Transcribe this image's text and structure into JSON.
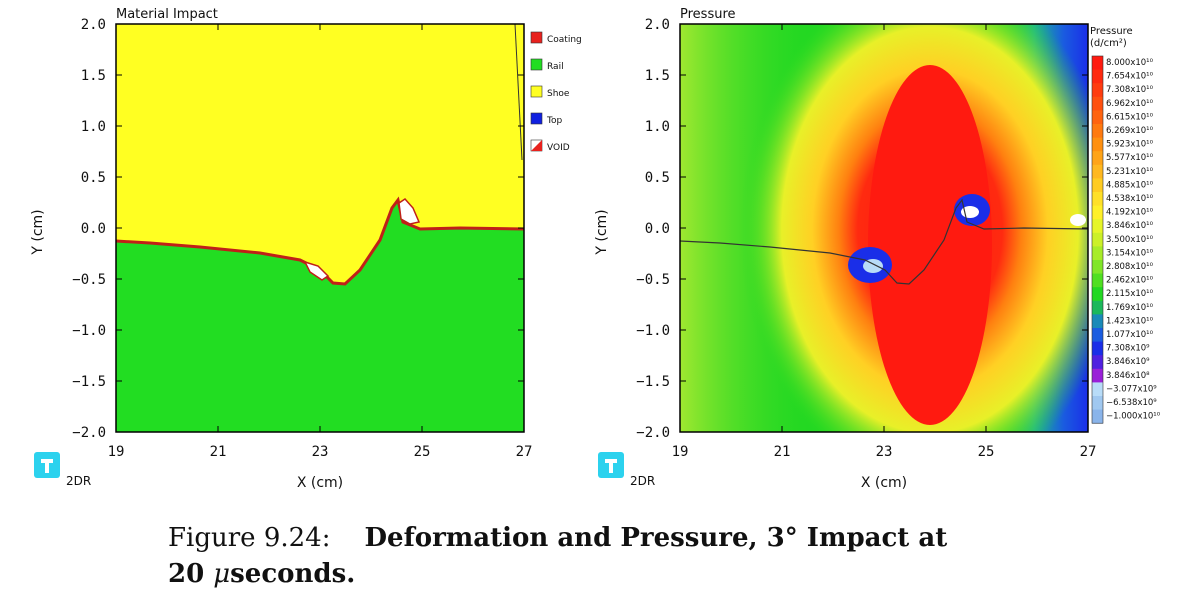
{
  "left_panel": {
    "title": "Material Impact",
    "xlabel": "X (cm)",
    "ylabel": "Y (cm)",
    "logo_text": "2DR",
    "legend": [
      {
        "label": "Coating",
        "color": "#e8221e"
      },
      {
        "label": "Rail",
        "color": "#22dd22"
      },
      {
        "label": "Shoe",
        "color": "#ffff22"
      },
      {
        "label": "Top",
        "color": "#1020e0"
      },
      {
        "label": "VOID",
        "color": "#ffffff"
      }
    ]
  },
  "right_panel": {
    "title": "Pressure",
    "xlabel": "X (cm)",
    "ylabel": "Y (cm)",
    "logo_text": "2DR",
    "colorbar_title": "Pressure",
    "colorbar_units": "(d/cm²)",
    "colorbar_labels": [
      "8.000x10¹⁰",
      "7.654x10¹⁰",
      "7.308x10¹⁰",
      "6.962x10¹⁰",
      "6.615x10¹⁰",
      "6.269x10¹⁰",
      "5.923x10¹⁰",
      "5.577x10¹⁰",
      "5.231x10¹⁰",
      "4.885x10¹⁰",
      "4.538x10¹⁰",
      "4.192x10¹⁰",
      "3.846x10¹⁰",
      "3.500x10¹⁰",
      "3.154x10¹⁰",
      "2.808x10¹⁰",
      "2.462x10¹⁰",
      "2.115x10¹⁰",
      "1.769x10¹⁰",
      "1.423x10¹⁰",
      "1.077x10¹⁰",
      "7.308x10⁹",
      "3.846x10⁹",
      "3.846x10⁸",
      "−3.077x10⁹",
      "−6.538x10⁹",
      "−1.000x10¹⁰"
    ],
    "colorbar_colors": [
      "#ff1a10",
      "#ff2a10",
      "#ff3c10",
      "#ff5010",
      "#ff6410",
      "#ff7a10",
      "#ff9010",
      "#ffa418",
      "#ffb820",
      "#ffcc22",
      "#ffe028",
      "#fff028",
      "#e6f528",
      "#ccf028",
      "#a8ec28",
      "#80e628",
      "#50df22",
      "#22d822",
      "#1cb85c",
      "#1a8ab8",
      "#1a5ce0",
      "#1a2ee8",
      "#5020e0",
      "#9a20d8",
      "#b8dcf8",
      "#a0c8f0",
      "#8ab4ea"
    ]
  },
  "chart_data": [
    {
      "type": "heatmap",
      "title": "Material Impact",
      "xlabel": "X (cm)",
      "ylabel": "Y (cm)",
      "xlim": [
        19,
        27
      ],
      "ylim": [
        -2.0,
        2.0
      ],
      "xticks": [
        "19",
        "21",
        "23",
        "25",
        "27"
      ],
      "yticks": [
        "2.0",
        "1.5",
        "1.0",
        "0.5",
        "0.0",
        "−0.5",
        "−1.0",
        "−1.5",
        "−2.0"
      ],
      "interface": [
        [
          19,
          -0.13
        ],
        [
          21,
          -0.18
        ],
        [
          22.5,
          -0.32
        ],
        [
          23.2,
          -0.52
        ],
        [
          23.6,
          -0.45
        ],
        [
          24.0,
          -0.05
        ],
        [
          24.5,
          0.33
        ],
        [
          24.9,
          0.0
        ],
        [
          27,
          0.0
        ]
      ],
      "materials": [
        "Coating",
        "Rail",
        "Shoe",
        "Top",
        "VOID"
      ]
    },
    {
      "type": "heatmap",
      "title": "Pressure",
      "xlabel": "X (cm)",
      "ylabel": "Y (cm)",
      "xlim": [
        19,
        27
      ],
      "ylim": [
        -2.0,
        2.0
      ],
      "xticks": [
        "19",
        "21",
        "23",
        "25",
        "27"
      ],
      "yticks": [
        "2.0",
        "1.5",
        "1.0",
        "0.5",
        "0.0",
        "−0.5",
        "−1.0",
        "−1.5",
        "−2.0"
      ],
      "colorbar_range": [
        -10000000000.0,
        80000000000.0
      ],
      "peak_region_center": [
        23.9,
        -0.1
      ]
    }
  ],
  "caption": {
    "label": "Figure 9.24:",
    "text_line1": "Deformation and Pressure, 3° Impact at",
    "text_line2_prefix": "20 ",
    "text_line2_mu": "μ",
    "text_line2_suffix": "seconds."
  }
}
